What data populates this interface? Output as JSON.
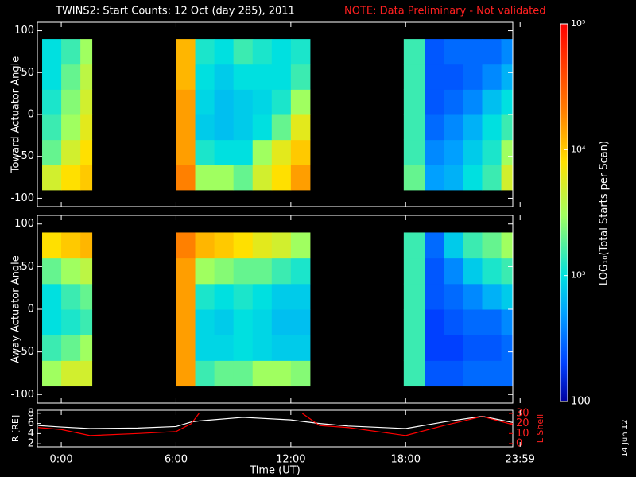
{
  "header": {
    "title": "TWINS2: Start Counts: 12 Oct (day 285), 2011",
    "note": "NOTE: Data Preliminary - Not validated",
    "stamp": "14 Jun 12"
  },
  "colorbar": {
    "label": "LOG₁₀(Total Starts per Scan)",
    "log": true,
    "lim": [
      100,
      100000
    ],
    "ticks": [
      {
        "value": 100,
        "label": "100"
      },
      {
        "value": 1000,
        "label": "10³"
      },
      {
        "value": 10000,
        "label": "10⁴"
      },
      {
        "value": 100000,
        "label": "10⁵"
      }
    ],
    "colors": [
      {
        "value": 100,
        "color": "#0000a0"
      },
      {
        "value": 200,
        "color": "#0040ff"
      },
      {
        "value": 500,
        "color": "#00a0ff"
      },
      {
        "value": 1000,
        "color": "#00e0e0"
      },
      {
        "value": 3000,
        "color": "#a0ff60"
      },
      {
        "value": 8000,
        "color": "#ffe000"
      },
      {
        "value": 20000,
        "color": "#ff8000"
      },
      {
        "value": 100000,
        "color": "#ff0000"
      }
    ]
  },
  "chart_data": [
    {
      "type": "heatmap",
      "ylabel": "Toward Actuator Angle",
      "xlim": [
        -1.25,
        23.6
      ],
      "ylim": [
        -110,
        110
      ],
      "yticks": [
        -100,
        -50,
        0,
        50,
        100
      ],
      "x_bins": [
        -1,
        0,
        1,
        1.6,
        6,
        7,
        8,
        9,
        10,
        11,
        12,
        13,
        17.9,
        19,
        20,
        21,
        22,
        23,
        23.6
      ],
      "y_bins": [
        -90,
        -60,
        -30,
        0,
        30,
        60,
        90
      ],
      "values": [
        [
          5000,
          8000,
          10000,
          null,
          20000,
          3000,
          3000,
          2000,
          5000,
          8000,
          15000,
          null,
          2000,
          500,
          600,
          1000,
          1500,
          5000
        ],
        [
          2000,
          5000,
          8000,
          null,
          15000,
          1200,
          1000,
          1000,
          3000,
          6000,
          10000,
          null,
          1500,
          400,
          500,
          800,
          1200,
          3000
        ],
        [
          1500,
          3000,
          6000,
          null,
          15000,
          800,
          700,
          800,
          1000,
          2000,
          6000,
          null,
          1500,
          300,
          400,
          600,
          1000,
          1500
        ],
        [
          1200,
          2500,
          5000,
          null,
          15000,
          900,
          700,
          800,
          900,
          1200,
          3000,
          null,
          1500,
          250,
          300,
          400,
          700,
          1000
        ],
        [
          1000,
          2000,
          4000,
          null,
          12000,
          1000,
          800,
          1000,
          1000,
          1000,
          1500,
          null,
          1500,
          250,
          250,
          300,
          400,
          600
        ],
        [
          1000,
          1500,
          3000,
          null,
          12000,
          1200,
          1000,
          1500,
          1200,
          1000,
          1200,
          null,
          1500,
          250,
          300,
          300,
          300,
          400
        ]
      ]
    },
    {
      "type": "heatmap",
      "ylabel": "Away Actuator Angle",
      "xlim": [
        -1.25,
        23.6
      ],
      "ylim": [
        -110,
        110
      ],
      "yticks": [
        -100,
        -50,
        0,
        50,
        100
      ],
      "x_bins": [
        -1,
        0,
        1,
        1.6,
        6,
        7,
        8,
        9,
        10,
        11,
        12,
        13,
        17.9,
        19,
        20,
        21,
        22,
        23,
        23.6
      ],
      "y_bins": [
        -90,
        -60,
        -30,
        0,
        30,
        60,
        90
      ],
      "values": [
        [
          3000,
          5000,
          5000,
          null,
          15000,
          1500,
          2000,
          2000,
          3000,
          3000,
          2500,
          null,
          1500,
          250,
          250,
          300,
          300,
          300
        ],
        [
          1500,
          2000,
          3000,
          null,
          15000,
          900,
          900,
          1000,
          900,
          800,
          800,
          null,
          1500,
          200,
          200,
          250,
          250,
          300
        ],
        [
          1000,
          1200,
          1500,
          null,
          15000,
          900,
          800,
          1000,
          900,
          700,
          700,
          null,
          1500,
          200,
          250,
          300,
          300,
          400
        ],
        [
          1000,
          1500,
          2000,
          null,
          15000,
          1200,
          1000,
          1200,
          1000,
          800,
          800,
          null,
          1500,
          250,
          300,
          400,
          600,
          800
        ],
        [
          2000,
          3000,
          4000,
          null,
          15000,
          3000,
          2500,
          2000,
          2000,
          1500,
          1200,
          null,
          1500,
          250,
          400,
          800,
          1200,
          1500
        ],
        [
          8000,
          10000,
          12000,
          null,
          20000,
          12000,
          10000,
          8000,
          6000,
          5000,
          3000,
          null,
          1500,
          300,
          800,
          1500,
          2000,
          3000
        ]
      ]
    },
    {
      "type": "line",
      "ylabel": "R [RE]",
      "y2label": "L Shell",
      "xlabel": "Time (UT)",
      "xlim": [
        -1.25,
        23.6
      ],
      "xticks": [
        {
          "value": 0,
          "label": "0:00"
        },
        {
          "value": 6,
          "label": "6:00"
        },
        {
          "value": 12,
          "label": "12:00"
        },
        {
          "value": 18,
          "label": "18:00"
        },
        {
          "value": 23.983,
          "label": "23:59"
        }
      ],
      "ylim": [
        1.4,
        8.6
      ],
      "yticks": [
        2,
        4,
        6,
        8
      ],
      "y2lim": [
        -3.2,
        33.2
      ],
      "y2ticks": [
        0,
        10,
        20,
        30
      ],
      "x": [
        -1.2,
        0,
        1.5,
        4,
        6,
        6.8,
        7.2,
        9.5,
        12,
        12.6,
        13.5,
        15,
        18,
        20,
        22,
        23.6
      ],
      "series": [
        {
          "color": "#ffffff",
          "values": [
            5.6,
            5.3,
            5.0,
            5.1,
            5.4,
            6.3,
            6.5,
            7.2,
            6.7,
            6.4,
            6.0,
            5.5,
            5.0,
            6.3,
            7.4,
            6.2
          ]
        },
        {
          "color": "#ff0000",
          "axis": "y2",
          "values": [
            16,
            14,
            8,
            10,
            12,
            20,
            30,
            null,
            null,
            30,
            18,
            16,
            8,
            18,
            27,
            19
          ]
        }
      ]
    }
  ]
}
